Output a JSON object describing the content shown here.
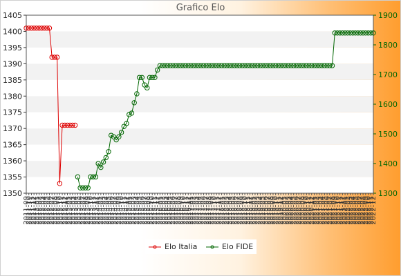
{
  "window": {
    "title": "Grafico Elo"
  },
  "colors": {
    "elo_italia": "#dd0000",
    "elo_fide": "#006600",
    "band_light": "#ffffff",
    "band_gray": "#f2f2f2",
    "axis_text": "#222222"
  },
  "chart_data": {
    "type": "line",
    "title": "Grafico Elo",
    "grid": true,
    "legend_position": "bottom-center",
    "x_tick_labels": [
      "2011-09",
      "2011-10",
      "2011-11",
      "2011-12",
      "2012-01",
      "2012-02",
      "2012-03",
      "2012-04",
      "2012-05",
      "2012-06",
      "2012-07",
      "2012-08",
      "2012-09",
      "2012-10",
      "2012-11",
      "2012-12",
      "2013-01",
      "2013-02",
      "2013-03",
      "2013-04",
      "2013-05",
      "2013-06",
      "2013-07",
      "2013-08",
      "2013-09",
      "2013-10",
      "2013-11",
      "2013-12",
      "2014-01",
      "2014-02",
      "2014-03",
      "2014-04",
      "2014-05",
      "2014-06",
      "2014-07",
      "2014-08",
      "2014-09",
      "2014-10",
      "2014-11",
      "2014-12",
      "2015-01",
      "2015-02",
      "2015-03",
      "2015-04",
      "2015-05",
      "2015-06",
      "2015-07",
      "2015-08",
      "2015-09",
      "2015-10",
      "2015-11",
      "2015-12",
      "2016-01",
      "2016-02",
      "2016-03",
      "2016-04",
      "2016-05",
      "2016-06",
      "2016-07",
      "2016-08",
      "2016-09",
      "2016-10",
      "2016-11",
      "2016-12",
      "2017-01",
      "2017-02",
      "2017-03",
      "2017-04",
      "2017-05",
      "2017-06",
      "2017-07",
      "2017-08",
      "2017-09",
      "2017-10",
      "2017-11",
      "2017-12",
      "2018-01",
      "2018-02",
      "2018-03",
      "2018-04",
      "2018-05",
      "2018-06",
      "2018-07",
      "2018-08",
      "2018-09",
      "2018-10",
      "2018-11",
      "2018-12",
      "2019-01",
      "2019-02",
      "2019-03",
      "2019-04",
      "2019-05",
      "2019-06",
      "2019-07",
      "2019-08",
      "2019-09",
      "2019-10",
      "2019-11",
      "2019-12",
      "2020-01",
      "2020-02",
      "2020-03",
      "2020-04",
      "2020-05",
      "2020-06",
      "2020-07",
      "2020-08",
      "2020-09",
      "2020-10",
      "2020-11",
      "2020-12",
      "2021-01",
      "2021-02",
      "2021-03",
      "2021-04",
      "2021-05",
      "2021-06",
      "2021-07",
      "2021-08",
      "2021-09",
      "2021-10",
      "2021-11",
      "2021-12",
      "2022-01",
      "2022-02",
      "2022-03",
      "2022-04",
      "2022-05",
      "2022-06",
      "2022-07",
      "2022-08",
      "2022-09",
      "2022-10",
      "2022-11",
      "2022-12"
    ],
    "y_left": {
      "min": 1350,
      "max": 1405,
      "step": 5
    },
    "y_right": {
      "min": 1300,
      "max": 1900,
      "step": 100
    },
    "series": [
      {
        "name": "Elo Italia",
        "axis": "left",
        "color": "#dd0000",
        "x_start": 0,
        "values": [
          1401,
          1401,
          1401,
          1401,
          1401,
          1401,
          1401,
          1401,
          1401,
          1401,
          1392,
          1392,
          1392,
          1353,
          1371,
          1371,
          1371,
          1371,
          1371,
          1371
        ]
      },
      {
        "name": "Elo FIDE",
        "axis": "right",
        "color": "#006600",
        "x_start": 20,
        "values": [
          1355,
          1318,
          1318,
          1318,
          1318,
          1355,
          1355,
          1355,
          1400,
          1387,
          1405,
          1420,
          1440,
          1495,
          1490,
          1480,
          1490,
          1505,
          1525,
          1535,
          1565,
          1570,
          1605,
          1635,
          1690,
          1690,
          1665,
          1655,
          1690,
          1690,
          1690,
          1715,
          1730,
          1730,
          1730,
          1730,
          1730,
          1730,
          1730,
          1730,
          1730,
          1730,
          1730,
          1730,
          1730,
          1730,
          1730,
          1730,
          1730,
          1730,
          1730,
          1730,
          1730,
          1730,
          1730,
          1730,
          1730,
          1730,
          1730,
          1730,
          1730,
          1730,
          1730,
          1730,
          1730,
          1730,
          1730,
          1730,
          1730,
          1730,
          1730,
          1730,
          1730,
          1730,
          1730,
          1730,
          1730,
          1730,
          1730,
          1730,
          1730,
          1730,
          1730,
          1730,
          1730,
          1730,
          1730,
          1730,
          1730,
          1730,
          1730,
          1730,
          1730,
          1730,
          1730,
          1730,
          1730,
          1730,
          1730,
          1730,
          1840,
          1840,
          1840,
          1840,
          1840,
          1840,
          1840,
          1840,
          1840,
          1840,
          1840,
          1840,
          1840,
          1840,
          1840,
          1840
        ]
      }
    ]
  }
}
